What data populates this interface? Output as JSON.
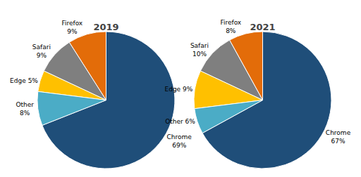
{
  "chart_data": [
    {
      "type": "pie",
      "title": "2019",
      "categories": [
        "Chrome",
        "Firefox",
        "Safari",
        "Edge",
        "Other"
      ],
      "values": [
        69,
        9,
        9,
        5,
        8
      ],
      "colors": [
        "#1f4e79",
        "#e36c09",
        "#7f7f7f",
        "#ffc000",
        "#4bacc6"
      ],
      "value_labels": [
        "Chrome\n69%",
        "Firefox\n9%",
        "Safari\n9%",
        "Edge 5%",
        "Other\n8%"
      ],
      "data_labels": true
    },
    {
      "type": "pie",
      "title": "2021",
      "categories": [
        "Chrome",
        "Firefox",
        "Safari",
        "Edge",
        "Other"
      ],
      "values": [
        67,
        8,
        10,
        9,
        6
      ],
      "colors": [
        "#1f4e79",
        "#e36c09",
        "#7f7f7f",
        "#ffc000",
        "#4bacc6"
      ],
      "value_labels": [
        "Chrome\n67%",
        "Firefox\n8%",
        "Safari\n10%",
        "Edge 9%",
        "Other 6%"
      ],
      "data_labels": true
    }
  ]
}
